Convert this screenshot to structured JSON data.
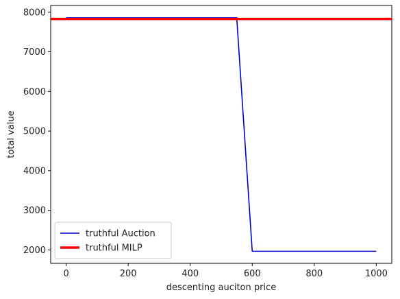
{
  "chart_data": {
    "type": "line",
    "title": "",
    "xlabel": "descenting auciton price",
    "ylabel": "total value",
    "xlim": [
      -50,
      1050
    ],
    "ylim": [
      1660,
      8170
    ],
    "xticks": [
      0,
      200,
      400,
      600,
      800,
      1000
    ],
    "yticks": [
      2000,
      3000,
      4000,
      5000,
      6000,
      7000,
      8000
    ],
    "grid": false,
    "legend_position": "lower-left",
    "series": [
      {
        "name": "truthful Auction",
        "color": "#0000cc",
        "x": [
          0,
          550,
          600,
          1000
        ],
        "y": [
          7860,
          7860,
          1965,
          1965
        ]
      },
      {
        "name": "truthful MILP",
        "color": "#ff0000",
        "style": "horizontal-line",
        "x": [
          -50,
          1050
        ],
        "y": [
          7830,
          7830
        ]
      }
    ]
  }
}
